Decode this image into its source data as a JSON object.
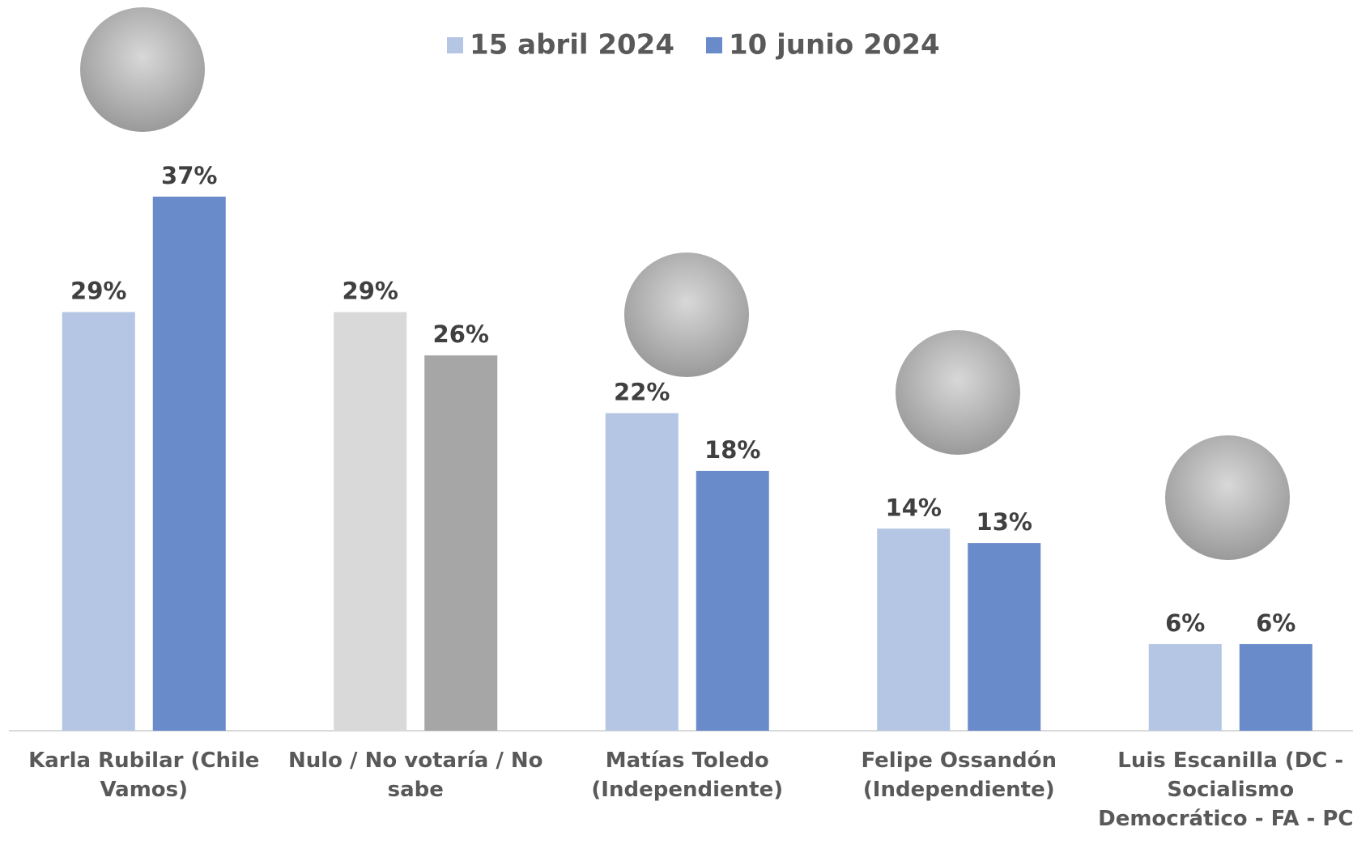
{
  "chart_data": {
    "type": "bar",
    "categories": [
      "Karla Rubilar (Chile Vamos)",
      "Nulo / No votaría / No sabe",
      "Matías Toledo (Independiente)",
      "Felipe Ossandón (Independiente)",
      "Luis Escanilla (DC - Socialismo Democrático - FA - PC)"
    ],
    "series": [
      {
        "name": "15 abril 2024",
        "color": "#b4c6e4",
        "colors": [
          "#b4c6e4",
          "#d9d9d9",
          "#b4c6e4",
          "#b4c6e4",
          "#b4c6e4"
        ],
        "values": [
          29,
          29,
          22,
          14,
          6
        ],
        "value_labels": [
          "29%",
          "29%",
          "22%",
          "14%",
          "6%"
        ]
      },
      {
        "name": "10 junio 2024",
        "color": "#6a8bca",
        "colors": [
          "#6a8bca",
          "#a6a6a6",
          "#6a8bca",
          "#6a8bca",
          "#6a8bca"
        ],
        "values": [
          37,
          26,
          18,
          13,
          6
        ],
        "value_labels": [
          "37%",
          "26%",
          "18%",
          "13%",
          "6%"
        ]
      }
    ]
  }
}
